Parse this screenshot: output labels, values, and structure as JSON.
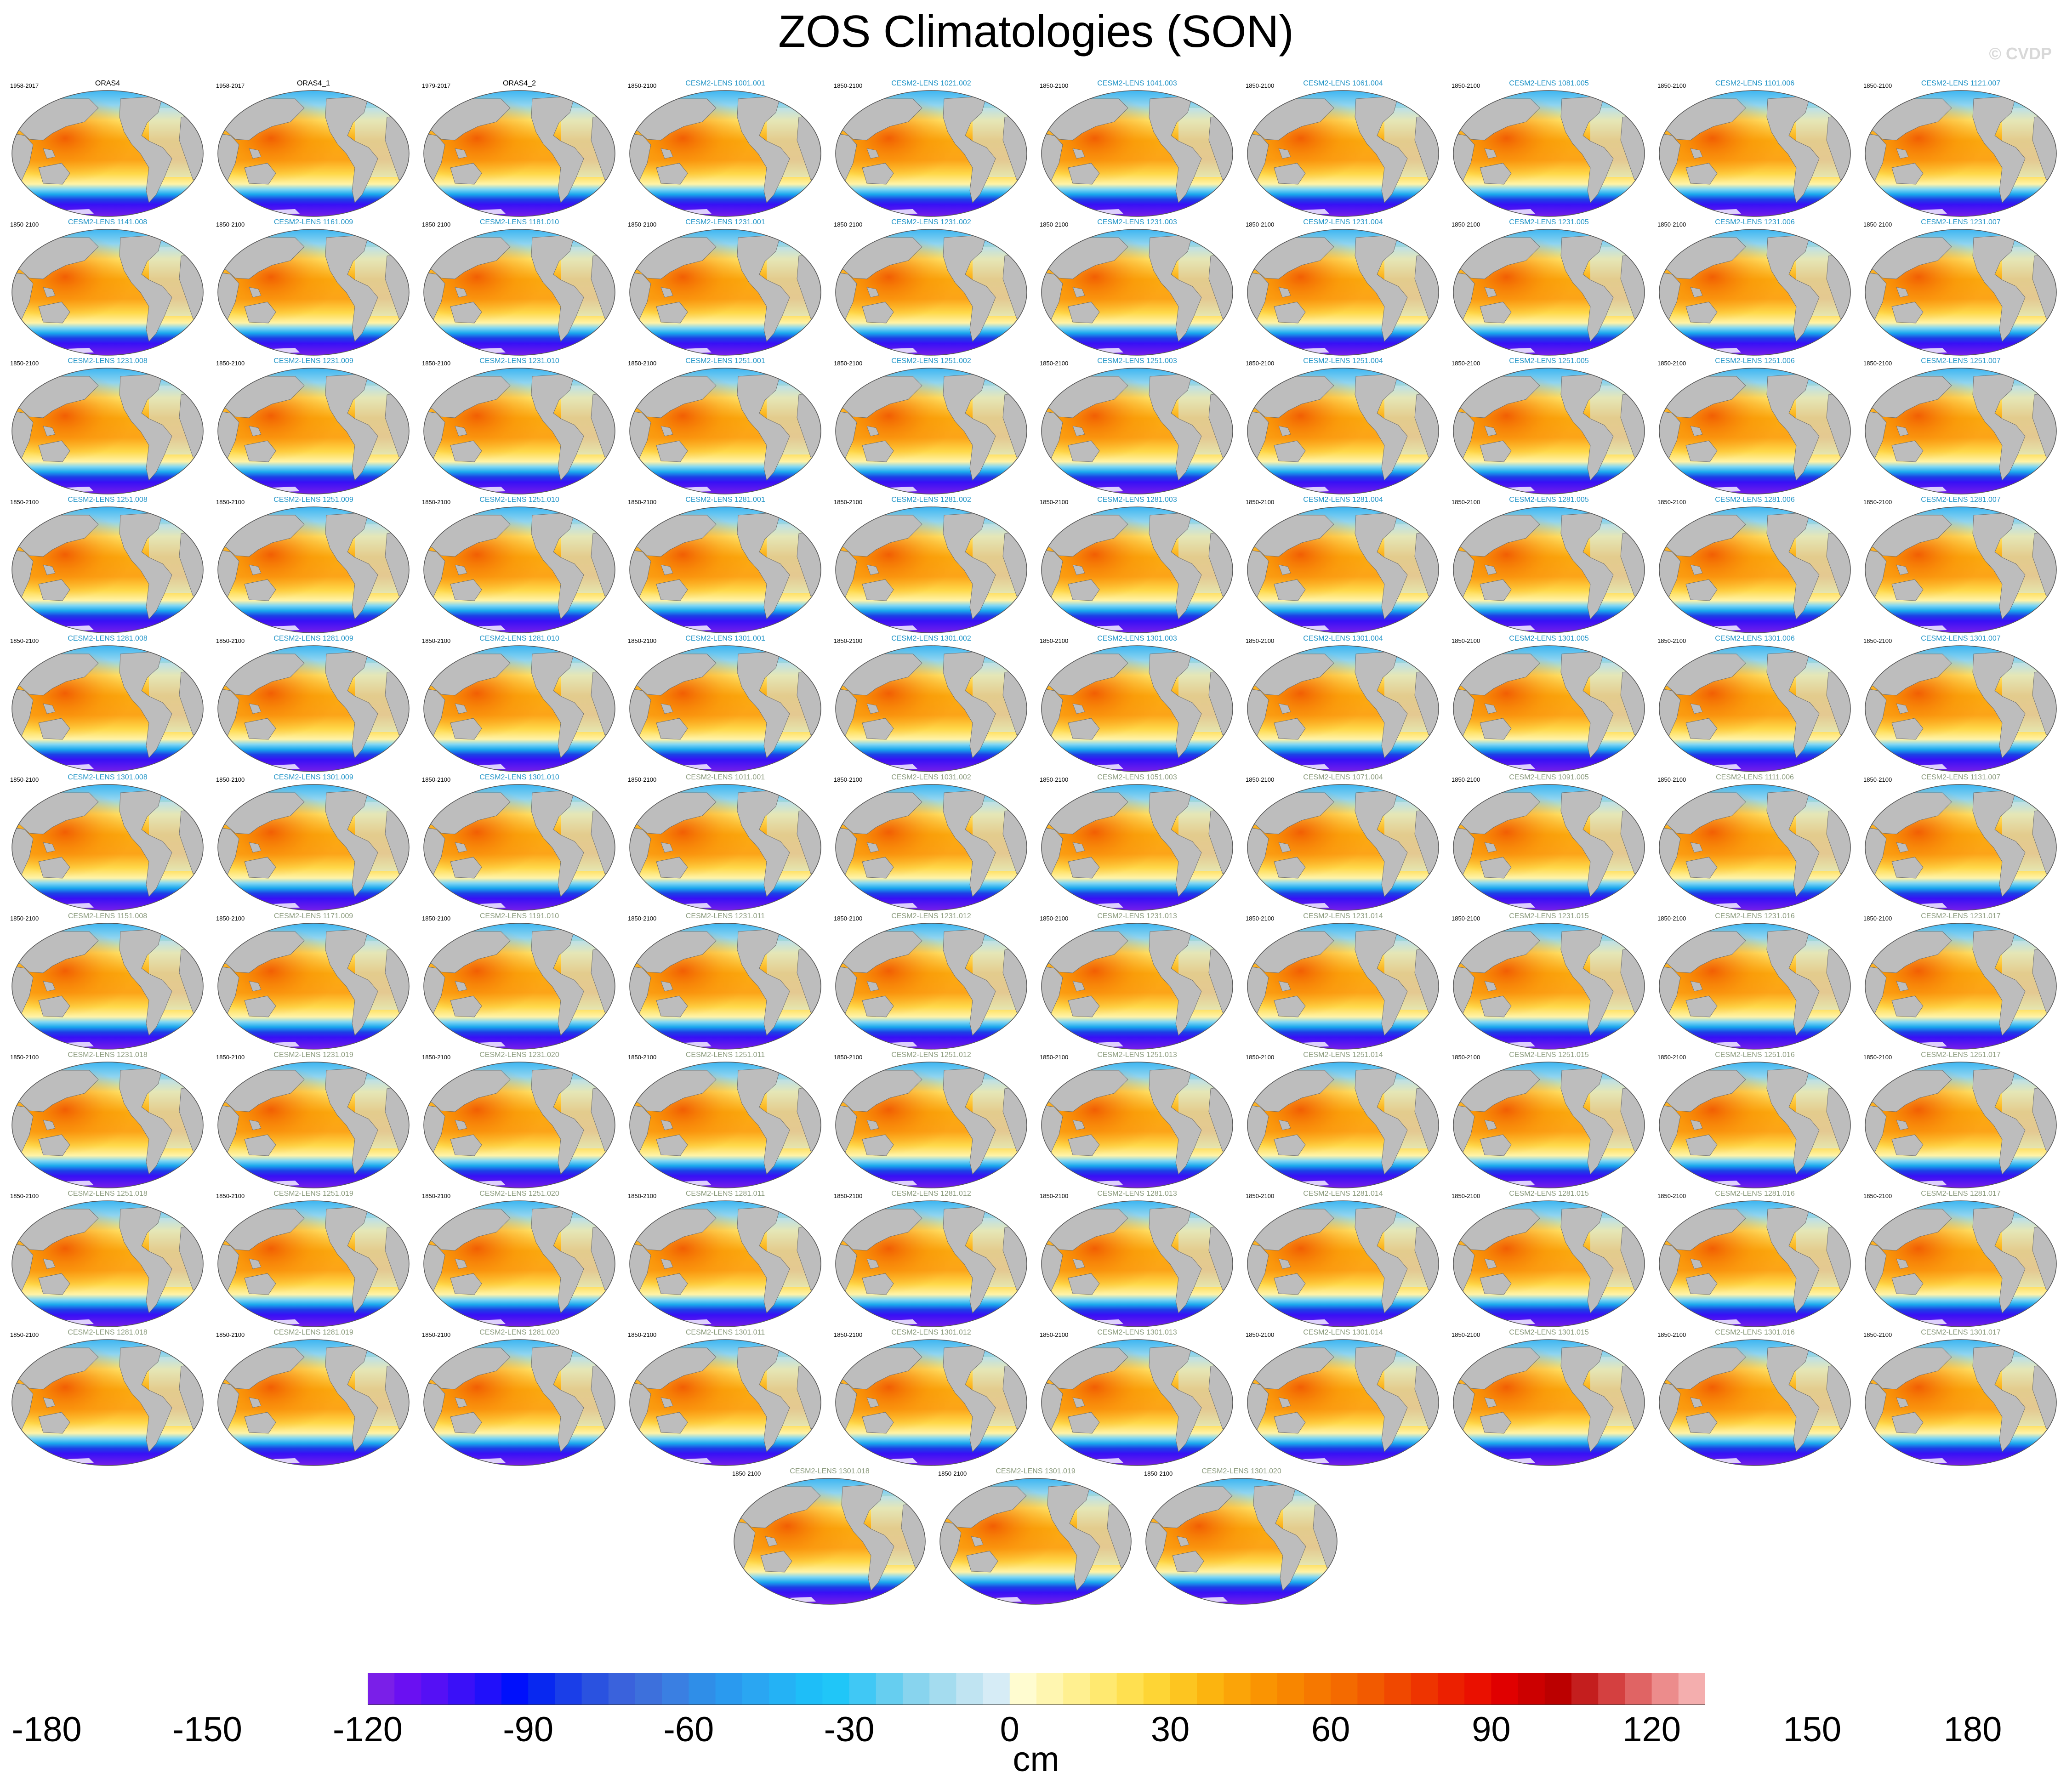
{
  "title": "ZOS Climatologies (SON)",
  "watermark": "© CVDP",
  "colorbar": {
    "units": "cm",
    "tick_labels": [
      "-180",
      "-150",
      "-120",
      "-90",
      "-60",
      "-30",
      "0",
      "30",
      "60",
      "90",
      "120",
      "150",
      "180"
    ],
    "colors": [
      "#7a1fe8",
      "#6a10f2",
      "#5510f5",
      "#3a10f8",
      "#2010fa",
      "#0010fc",
      "#0828f0",
      "#1a3ee8",
      "#2a52e0",
      "#3a62dc",
      "#3d70dc",
      "#3a7fe2",
      "#2f8ee8",
      "#2a9aef",
      "#2aa6f2",
      "#24b2f5",
      "#1ebef8",
      "#20c6f8",
      "#40c8f5",
      "#66cef0",
      "#88d4ee",
      "#a4dcef",
      "#c0e4f2",
      "#d6ecf6",
      "#fffcd0",
      "#fff6b0",
      "#fff090",
      "#ffe970",
      "#ffe050",
      "#fed535",
      "#fdc520",
      "#fcb40f",
      "#fba408",
      "#fa9402",
      "#f88600",
      "#f67800",
      "#f46a00",
      "#f25a00",
      "#f04800",
      "#ee3400",
      "#ec2000",
      "#ea1000",
      "#e00000",
      "#cc0000",
      "#bb0000",
      "#c41e1e",
      "#d44040",
      "#e06464",
      "#ec8c8c",
      "#f4aeae"
    ]
  },
  "panels": [
    {
      "name": "ORAS4",
      "years": "1958-2017",
      "style": 0
    },
    {
      "name": "ORAS4_1",
      "years": "1958-2017",
      "style": 0
    },
    {
      "name": "ORAS4_2",
      "years": "1979-2017",
      "style": 0
    },
    {
      "name": "CESM2-LENS 1001.001",
      "years": "1850-2100",
      "style": 1
    },
    {
      "name": "CESM2-LENS 1021.002",
      "years": "1850-2100",
      "style": 1
    },
    {
      "name": "CESM2-LENS 1041.003",
      "years": "1850-2100",
      "style": 1
    },
    {
      "name": "CESM2-LENS 1061.004",
      "years": "1850-2100",
      "style": 1
    },
    {
      "name": "CESM2-LENS 1081.005",
      "years": "1850-2100",
      "style": 1
    },
    {
      "name": "CESM2-LENS 1101.006",
      "years": "1850-2100",
      "style": 1
    },
    {
      "name": "CESM2-LENS 1121.007",
      "years": "1850-2100",
      "style": 1
    },
    {
      "name": "CESM2-LENS 1141.008",
      "years": "1850-2100",
      "style": 1
    },
    {
      "name": "CESM2-LENS 1161.009",
      "years": "1850-2100",
      "style": 1
    },
    {
      "name": "CESM2-LENS 1181.010",
      "years": "1850-2100",
      "style": 1
    },
    {
      "name": "CESM2-LENS 1231.001",
      "years": "1850-2100",
      "style": 1
    },
    {
      "name": "CESM2-LENS 1231.002",
      "years": "1850-2100",
      "style": 1
    },
    {
      "name": "CESM2-LENS 1231.003",
      "years": "1850-2100",
      "style": 1
    },
    {
      "name": "CESM2-LENS 1231.004",
      "years": "1850-2100",
      "style": 1
    },
    {
      "name": "CESM2-LENS 1231.005",
      "years": "1850-2100",
      "style": 1
    },
    {
      "name": "CESM2-LENS 1231.006",
      "years": "1850-2100",
      "style": 1
    },
    {
      "name": "CESM2-LENS 1231.007",
      "years": "1850-2100",
      "style": 1
    },
    {
      "name": "CESM2-LENS 1231.008",
      "years": "1850-2100",
      "style": 1
    },
    {
      "name": "CESM2-LENS 1231.009",
      "years": "1850-2100",
      "style": 1
    },
    {
      "name": "CESM2-LENS 1231.010",
      "years": "1850-2100",
      "style": 1
    },
    {
      "name": "CESM2-LENS 1251.001",
      "years": "1850-2100",
      "style": 1
    },
    {
      "name": "CESM2-LENS 1251.002",
      "years": "1850-2100",
      "style": 1
    },
    {
      "name": "CESM2-LENS 1251.003",
      "years": "1850-2100",
      "style": 1
    },
    {
      "name": "CESM2-LENS 1251.004",
      "years": "1850-2100",
      "style": 1
    },
    {
      "name": "CESM2-LENS 1251.005",
      "years": "1850-2100",
      "style": 1
    },
    {
      "name": "CESM2-LENS 1251.006",
      "years": "1850-2100",
      "style": 1
    },
    {
      "name": "CESM2-LENS 1251.007",
      "years": "1850-2100",
      "style": 1
    },
    {
      "name": "CESM2-LENS 1251.008",
      "years": "1850-2100",
      "style": 1
    },
    {
      "name": "CESM2-LENS 1251.009",
      "years": "1850-2100",
      "style": 1
    },
    {
      "name": "CESM2-LENS 1251.010",
      "years": "1850-2100",
      "style": 1
    },
    {
      "name": "CESM2-LENS 1281.001",
      "years": "1850-2100",
      "style": 1
    },
    {
      "name": "CESM2-LENS 1281.002",
      "years": "1850-2100",
      "style": 1
    },
    {
      "name": "CESM2-LENS 1281.003",
      "years": "1850-2100",
      "style": 1
    },
    {
      "name": "CESM2-LENS 1281.004",
      "years": "1850-2100",
      "style": 1
    },
    {
      "name": "CESM2-LENS 1281.005",
      "years": "1850-2100",
      "style": 1
    },
    {
      "name": "CESM2-LENS 1281.006",
      "years": "1850-2100",
      "style": 1
    },
    {
      "name": "CESM2-LENS 1281.007",
      "years": "1850-2100",
      "style": 1
    },
    {
      "name": "CESM2-LENS 1281.008",
      "years": "1850-2100",
      "style": 1
    },
    {
      "name": "CESM2-LENS 1281.009",
      "years": "1850-2100",
      "style": 1
    },
    {
      "name": "CESM2-LENS 1281.010",
      "years": "1850-2100",
      "style": 1
    },
    {
      "name": "CESM2-LENS 1301.001",
      "years": "1850-2100",
      "style": 1
    },
    {
      "name": "CESM2-LENS 1301.002",
      "years": "1850-2100",
      "style": 1
    },
    {
      "name": "CESM2-LENS 1301.003",
      "years": "1850-2100",
      "style": 1
    },
    {
      "name": "CESM2-LENS 1301.004",
      "years": "1850-2100",
      "style": 1
    },
    {
      "name": "CESM2-LENS 1301.005",
      "years": "1850-2100",
      "style": 1
    },
    {
      "name": "CESM2-LENS 1301.006",
      "years": "1850-2100",
      "style": 1
    },
    {
      "name": "CESM2-LENS 1301.007",
      "years": "1850-2100",
      "style": 1
    },
    {
      "name": "CESM2-LENS 1301.008",
      "years": "1850-2100",
      "style": 1
    },
    {
      "name": "CESM2-LENS 1301.009",
      "years": "1850-2100",
      "style": 1
    },
    {
      "name": "CESM2-LENS 1301.010",
      "years": "1850-2100",
      "style": 1
    },
    {
      "name": "CESM2-LENS 1011.001",
      "years": "1850-2100",
      "style": 2
    },
    {
      "name": "CESM2-LENS 1031.002",
      "years": "1850-2100",
      "style": 2
    },
    {
      "name": "CESM2-LENS 1051.003",
      "years": "1850-2100",
      "style": 2
    },
    {
      "name": "CESM2-LENS 1071.004",
      "years": "1850-2100",
      "style": 2
    },
    {
      "name": "CESM2-LENS 1091.005",
      "years": "1850-2100",
      "style": 2
    },
    {
      "name": "CESM2-LENS 1111.006",
      "years": "1850-2100",
      "style": 2
    },
    {
      "name": "CESM2-LENS 1131.007",
      "years": "1850-2100",
      "style": 2
    },
    {
      "name": "CESM2-LENS 1151.008",
      "years": "1850-2100",
      "style": 2
    },
    {
      "name": "CESM2-LENS 1171.009",
      "years": "1850-2100",
      "style": 2
    },
    {
      "name": "CESM2-LENS 1191.010",
      "years": "1850-2100",
      "style": 2
    },
    {
      "name": "CESM2-LENS 1231.011",
      "years": "1850-2100",
      "style": 2
    },
    {
      "name": "CESM2-LENS 1231.012",
      "years": "1850-2100",
      "style": 2
    },
    {
      "name": "CESM2-LENS 1231.013",
      "years": "1850-2100",
      "style": 2
    },
    {
      "name": "CESM2-LENS 1231.014",
      "years": "1850-2100",
      "style": 2
    },
    {
      "name": "CESM2-LENS 1231.015",
      "years": "1850-2100",
      "style": 2
    },
    {
      "name": "CESM2-LENS 1231.016",
      "years": "1850-2100",
      "style": 2
    },
    {
      "name": "CESM2-LENS 1231.017",
      "years": "1850-2100",
      "style": 2
    },
    {
      "name": "CESM2-LENS 1231.018",
      "years": "1850-2100",
      "style": 2
    },
    {
      "name": "CESM2-LENS 1231.019",
      "years": "1850-2100",
      "style": 2
    },
    {
      "name": "CESM2-LENS 1231.020",
      "years": "1850-2100",
      "style": 2
    },
    {
      "name": "CESM2-LENS 1251.011",
      "years": "1850-2100",
      "style": 2
    },
    {
      "name": "CESM2-LENS 1251.012",
      "years": "1850-2100",
      "style": 2
    },
    {
      "name": "CESM2-LENS 1251.013",
      "years": "1850-2100",
      "style": 2
    },
    {
      "name": "CESM2-LENS 1251.014",
      "years": "1850-2100",
      "style": 2
    },
    {
      "name": "CESM2-LENS 1251.015",
      "years": "1850-2100",
      "style": 2
    },
    {
      "name": "CESM2-LENS 1251.016",
      "years": "1850-2100",
      "style": 2
    },
    {
      "name": "CESM2-LENS 1251.017",
      "years": "1850-2100",
      "style": 2
    },
    {
      "name": "CESM2-LENS 1251.018",
      "years": "1850-2100",
      "style": 2
    },
    {
      "name": "CESM2-LENS 1251.019",
      "years": "1850-2100",
      "style": 2
    },
    {
      "name": "CESM2-LENS 1251.020",
      "years": "1850-2100",
      "style": 2
    },
    {
      "name": "CESM2-LENS 1281.011",
      "years": "1850-2100",
      "style": 2
    },
    {
      "name": "CESM2-LENS 1281.012",
      "years": "1850-2100",
      "style": 2
    },
    {
      "name": "CESM2-LENS 1281.013",
      "years": "1850-2100",
      "style": 2
    },
    {
      "name": "CESM2-LENS 1281.014",
      "years": "1850-2100",
      "style": 2
    },
    {
      "name": "CESM2-LENS 1281.015",
      "years": "1850-2100",
      "style": 2
    },
    {
      "name": "CESM2-LENS 1281.016",
      "years": "1850-2100",
      "style": 2
    },
    {
      "name": "CESM2-LENS 1281.017",
      "years": "1850-2100",
      "style": 2
    },
    {
      "name": "CESM2-LENS 1281.018",
      "years": "1850-2100",
      "style": 2
    },
    {
      "name": "CESM2-LENS 1281.019",
      "years": "1850-2100",
      "style": 2
    },
    {
      "name": "CESM2-LENS 1281.020",
      "years": "1850-2100",
      "style": 2
    },
    {
      "name": "CESM2-LENS 1301.011",
      "years": "1850-2100",
      "style": 2
    },
    {
      "name": "CESM2-LENS 1301.012",
      "years": "1850-2100",
      "style": 2
    },
    {
      "name": "CESM2-LENS 1301.013",
      "years": "1850-2100",
      "style": 2
    },
    {
      "name": "CESM2-LENS 1301.014",
      "years": "1850-2100",
      "style": 2
    },
    {
      "name": "CESM2-LENS 1301.015",
      "years": "1850-2100",
      "style": 2
    },
    {
      "name": "CESM2-LENS 1301.016",
      "years": "1850-2100",
      "style": 2
    },
    {
      "name": "CESM2-LENS 1301.017",
      "years": "1850-2100",
      "style": 2
    },
    {
      "name": "CESM2-LENS 1301.018",
      "years": "1850-2100",
      "style": 2
    },
    {
      "name": "CESM2-LENS 1301.019",
      "years": "1850-2100",
      "style": 2
    },
    {
      "name": "CESM2-LENS 1301.020",
      "years": "1850-2100",
      "style": 2
    }
  ]
}
